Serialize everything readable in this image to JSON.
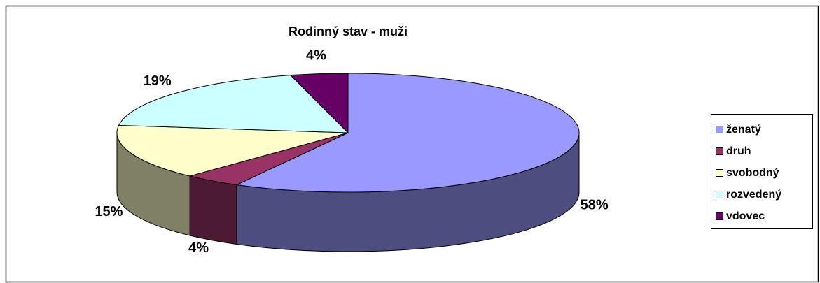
{
  "chart_data": {
    "type": "pie",
    "title": "Rodinný stav - muži",
    "categories": [
      "ženatý",
      "druh",
      "svobodný",
      "rozvedený",
      "vdovec"
    ],
    "values": [
      58,
      4,
      15,
      19,
      4
    ],
    "value_labels": [
      "58%",
      "4%",
      "15%",
      "19%",
      "4%"
    ],
    "colors": [
      "#9999ff",
      "#993366",
      "#ffffcc",
      "#ccffff",
      "#660066"
    ],
    "legend": "right"
  }
}
